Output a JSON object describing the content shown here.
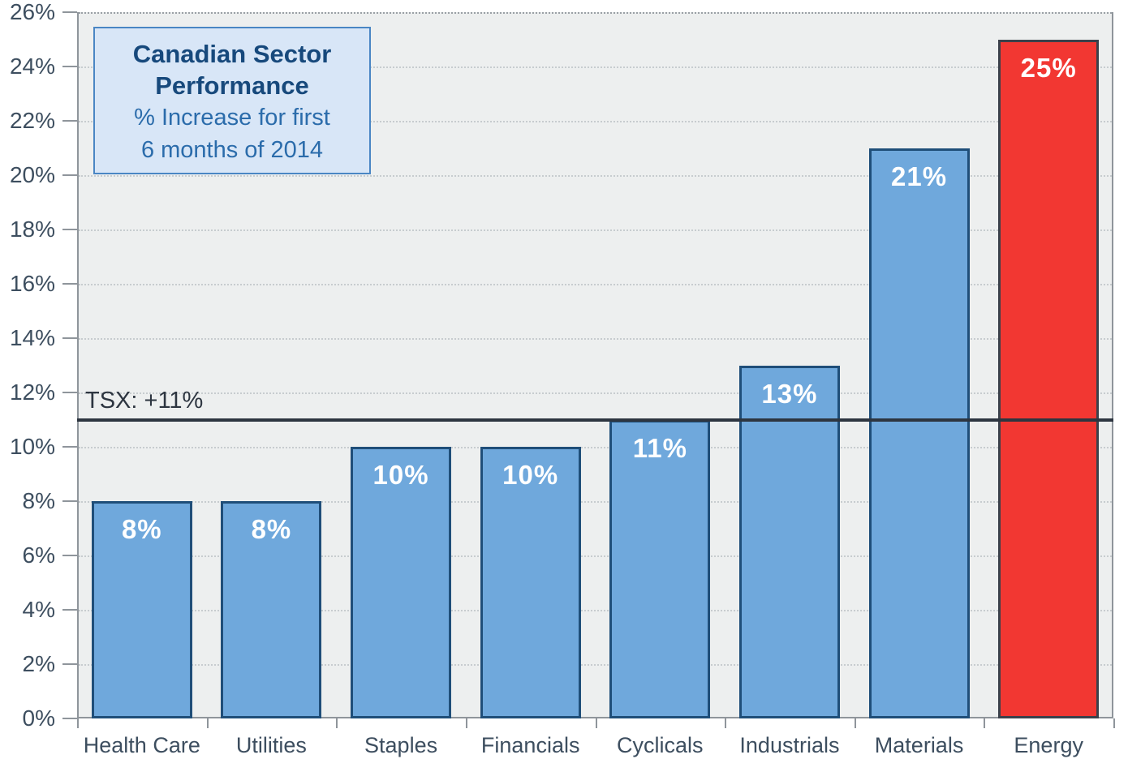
{
  "title_box": {
    "title_line1": "Canadian Sector",
    "title_line2": "Performance",
    "subtitle_line1": "% Increase for first",
    "subtitle_line2": "6 months of 2014"
  },
  "chart_data": {
    "type": "bar",
    "title": "Canadian Sector Performance",
    "subtitle": "% Increase for first 6 months of 2014",
    "categories": [
      "Health Care",
      "Utilities",
      "Staples",
      "Financials",
      "Cyclicals",
      "Industrials",
      "Materials",
      "Energy"
    ],
    "values": [
      8,
      8,
      10,
      10,
      11,
      13,
      21,
      25
    ],
    "bar_labels": [
      "8%",
      "8%",
      "10%",
      "10%",
      "11%",
      "13%",
      "21%",
      "25%"
    ],
    "highlight_category": "Energy",
    "reference_line": {
      "label": "TSX: +11%",
      "value": 11
    },
    "y_axis": {
      "min": 0,
      "max": 26,
      "step": 2,
      "tick_suffix": "%"
    },
    "xlabel": "",
    "ylabel": "",
    "grid": "horizontal-dotted",
    "legend": "none",
    "colors": {
      "bar_fill": "#6fa8dc",
      "bar_border": "#1f4e79",
      "highlight_fill": "#f23732",
      "highlight_border": "#3b414b",
      "reference_line": "#2d3540",
      "plot_background": "#edefef",
      "axis": "#8f959b",
      "tick_text": "#3d4e5f",
      "title_text": "#17497c",
      "subtitle_text": "#2b6cab",
      "title_box_fill": "#d8e6f7",
      "title_box_border": "#4a86c4",
      "bar_label_text": "#ffffff"
    }
  }
}
